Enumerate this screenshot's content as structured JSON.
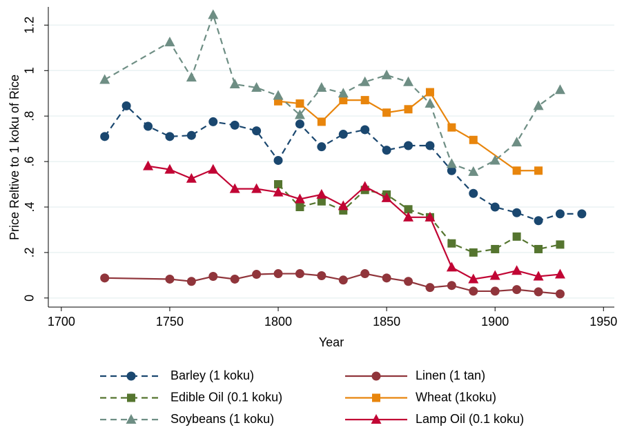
{
  "chart_data": {
    "type": "line",
    "x_label": "Year",
    "y_label": "Price Reltive to 1 koku of Rice",
    "xlim": [
      1694,
      1955
    ],
    "xticks": [
      1700,
      1750,
      1800,
      1850,
      1900,
      1950
    ],
    "ylim": [
      -0.04,
      1.28
    ],
    "yticks": [
      {
        "value": 0,
        "label": "0"
      },
      {
        "value": 0.2,
        "label": ".2"
      },
      {
        "value": 0.4,
        "label": ".4"
      },
      {
        "value": 0.6,
        "label": ".6"
      },
      {
        "value": 0.8,
        "label": ".8"
      },
      {
        "value": 1,
        "label": "1"
      },
      {
        "value": 1.2,
        "label": "1.2"
      }
    ],
    "grid": true,
    "series": [
      {
        "name": "Barley (1 koku)",
        "color": "#1a476f",
        "dash": true,
        "marker": "circle",
        "x": [
          1720,
          1730,
          1740,
          1750,
          1760,
          1770,
          1780,
          1790,
          1800,
          1810,
          1820,
          1830,
          1840,
          1850,
          1860,
          1870,
          1880,
          1890,
          1900,
          1910,
          1920,
          1930,
          1940
        ],
        "values": [
          0.71,
          0.845,
          0.755,
          0.71,
          0.715,
          0.775,
          0.76,
          0.735,
          0.605,
          0.765,
          0.665,
          0.72,
          0.74,
          0.65,
          0.67,
          0.67,
          0.56,
          0.46,
          0.4,
          0.375,
          0.34,
          0.37,
          0.37
        ]
      },
      {
        "name": "Linen (1 tan)",
        "color": "#90353b",
        "dash": false,
        "marker": "circle",
        "x": [
          1720,
          1750,
          1760,
          1770,
          1780,
          1790,
          1800,
          1810,
          1820,
          1830,
          1840,
          1850,
          1860,
          1870,
          1880,
          1890,
          1900,
          1910,
          1920,
          1930
        ],
        "values": [
          0.088,
          0.083,
          0.073,
          0.095,
          0.083,
          0.104,
          0.107,
          0.107,
          0.098,
          0.079,
          0.107,
          0.088,
          0.073,
          0.046,
          0.055,
          0.03,
          0.03,
          0.037,
          0.027,
          0.018
        ]
      },
      {
        "name": "Edible Oil (0.1 koku)",
        "color": "#55752f",
        "dash": true,
        "marker": "square",
        "x": [
          1800,
          1810,
          1820,
          1830,
          1840,
          1850,
          1860,
          1870,
          1880,
          1890,
          1900,
          1910,
          1920,
          1930
        ],
        "values": [
          0.5,
          0.4,
          0.425,
          0.385,
          0.475,
          0.455,
          0.39,
          0.355,
          0.24,
          0.2,
          0.215,
          0.27,
          0.215,
          0.235
        ]
      },
      {
        "name": "Wheat (1koku)",
        "color": "#e8850c",
        "dash": false,
        "marker": "square",
        "x": [
          1800,
          1810,
          1820,
          1830,
          1840,
          1850,
          1860,
          1870,
          1880,
          1890,
          1910,
          1920
        ],
        "values": [
          0.865,
          0.855,
          0.775,
          0.87,
          0.87,
          0.815,
          0.83,
          0.905,
          0.75,
          0.695,
          0.56,
          0.56
        ]
      },
      {
        "name": "Soybeans (1 koku)",
        "color": "#6e8e84",
        "dash": true,
        "marker": "triangle",
        "x": [
          1720,
          1750,
          1760,
          1770,
          1780,
          1790,
          1800,
          1810,
          1820,
          1830,
          1840,
          1850,
          1860,
          1870,
          1880,
          1890,
          1900,
          1910,
          1920,
          1930
        ],
        "values": [
          0.96,
          1.125,
          0.97,
          1.245,
          0.94,
          0.925,
          0.89,
          0.805,
          0.925,
          0.9,
          0.95,
          0.98,
          0.95,
          0.855,
          0.59,
          0.555,
          0.605,
          0.685,
          0.845,
          0.915
        ]
      },
      {
        "name": "Lamp Oil (0.1 koku)",
        "color": "#c10534",
        "dash": false,
        "marker": "triangle",
        "x": [
          1740,
          1750,
          1760,
          1770,
          1780,
          1790,
          1800,
          1810,
          1820,
          1830,
          1840,
          1850,
          1860,
          1870,
          1880,
          1890,
          1900,
          1910,
          1920,
          1930
        ],
        "values": [
          0.58,
          0.565,
          0.525,
          0.565,
          0.48,
          0.48,
          0.465,
          0.435,
          0.455,
          0.405,
          0.49,
          0.44,
          0.355,
          0.355,
          0.135,
          0.083,
          0.098,
          0.12,
          0.095,
          0.104
        ]
      }
    ]
  }
}
